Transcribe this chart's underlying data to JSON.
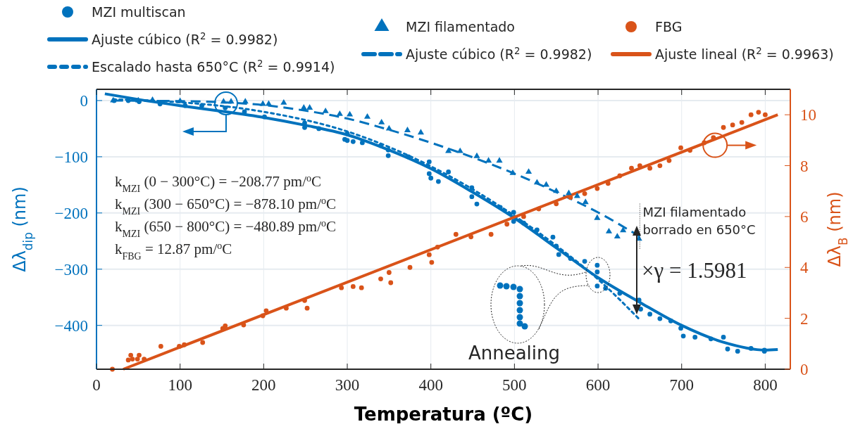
{
  "chart_data": {
    "type": "scatter",
    "xlabel": "Temperatura (ºC)",
    "ylabel": "Δλ$_{dip}$ (nm)",
    "y2label": "Δλ$_{B}$ (nm)",
    "xlim": [
      0,
      830
    ],
    "xticks": [
      0,
      100,
      200,
      300,
      400,
      500,
      600,
      700,
      800
    ],
    "ylim": [
      -478,
      20
    ],
    "yticks": [
      -400,
      -300,
      -200,
      -100,
      0
    ],
    "y2lim": [
      0,
      11
    ],
    "y2ticks": [
      0,
      2,
      4,
      6,
      8,
      10
    ],
    "grid": true,
    "legend": "top",
    "series": [
      {
        "name": "MZI multiscan",
        "marker": "circle",
        "color": "#0072bd",
        "x": [
          21,
          38,
          51,
          76,
          106,
          126,
          154,
          177,
          201,
          249,
          249,
          266,
          297,
          300,
          300,
          307,
          318,
          340,
          349,
          349,
          373,
          398,
          398,
          400,
          409,
          421,
          449,
          449,
          455,
          483,
          499,
          499,
          511,
          527,
          546,
          550,
          553,
          567,
          584,
          599,
          599,
          599,
          609,
          626,
          649,
          651,
          662,
          674,
          687,
          699,
          702,
          716,
          735,
          750,
          755,
          767,
          783,
          799,
          799
        ],
        "values": [
          0,
          0,
          -2,
          -6,
          -9,
          -9,
          -13,
          -20,
          -29,
          -40,
          -48,
          -50,
          -69,
          -59,
          -71,
          -73,
          -75,
          -80,
          -88,
          -98,
          -100,
          -109,
          -130,
          -138,
          -144,
          -127,
          -155,
          -171,
          -184,
          -190,
          -199,
          -215,
          -218,
          -230,
          -243,
          -259,
          -274,
          -281,
          -286,
          -293,
          -305,
          -330,
          -334,
          -343,
          -355,
          -371,
          -380,
          -388,
          -392,
          -405,
          -419,
          -421,
          -424,
          -421,
          -442,
          -446,
          -441,
          -444,
          -446
        ]
      },
      {
        "name": "Ajuste cúbico (R$^{2}$ = 0.9982)",
        "type": "line",
        "line_style": "solid",
        "color": "#0072bd",
        "x": [
          10,
          50,
          100,
          150,
          200,
          250,
          300,
          350,
          400,
          450,
          500,
          550,
          600,
          650,
          700,
          750,
          800,
          815
        ],
        "values": [
          12,
          2,
          -9,
          -19,
          -30,
          -44,
          -61,
          -88,
          -121,
          -163,
          -209,
          -262,
          -315,
          -359,
          -400,
          -430,
          -444,
          -443
        ]
      },
      {
        "name": "Escalado hasta 650°C (R$^{2}$ = 0.9914)",
        "type": "line",
        "line_style": "dotted",
        "color": "#0072bd",
        "x": [
          20,
          100,
          200,
          300,
          400,
          500,
          550,
          600,
          650
        ],
        "values": [
          2,
          -3,
          -20,
          -55,
          -117,
          -205,
          -258,
          -318,
          -390
        ]
      },
      {
        "name": "MZI filamentado",
        "marker": "triangle",
        "color": "#0072bd",
        "x": [
          20,
          50,
          67,
          100,
          152,
          161,
          178,
          199,
          206,
          224,
          248,
          255,
          274,
          291,
          303,
          324,
          341,
          350,
          372,
          388,
          421,
          435,
          455,
          469,
          482,
          498,
          517,
          527,
          538,
          550,
          565,
          575,
          585,
          599,
          613,
          623,
          630,
          649
        ],
        "values": [
          0,
          0,
          1,
          -1,
          -2,
          -2,
          -2,
          -6,
          -6,
          -4,
          -13,
          -13,
          -19,
          -24,
          -25,
          -29,
          -39,
          -50,
          -53,
          -57,
          -90,
          -90,
          -99,
          -107,
          -107,
          -129,
          -127,
          -146,
          -150,
          -161,
          -165,
          -170,
          -181,
          -209,
          -233,
          -242,
          -231,
          -246
        ]
      },
      {
        "name": "Ajuste cúbico (R$^{2}$ = 0.9982)",
        "type": "line",
        "line_style": "dashed",
        "color": "#0072bd",
        "x": [
          20,
          100,
          150,
          200,
          250,
          300,
          350,
          400,
          450,
          500,
          550,
          600,
          650
        ],
        "values": [
          0,
          -1,
          -3,
          -8,
          -18,
          -32,
          -52,
          -75,
          -101,
          -130,
          -163,
          -199,
          -242
        ]
      },
      {
        "name": "FBG",
        "marker": "circle",
        "axis": "y2",
        "color": "#d95319",
        "x": [
          19,
          38,
          41,
          43,
          49,
          51,
          57,
          77,
          99,
          105,
          127,
          151,
          154,
          176,
          199,
          203,
          227,
          249,
          252,
          293,
          307,
          317,
          340,
          350,
          352,
          375,
          398,
          401,
          408,
          430,
          448,
          472,
          491,
          511,
          529,
          550,
          567,
          584,
          599,
          612,
          626,
          640,
          650,
          662,
          674,
          685,
          699,
          710,
          727,
          738,
          750,
          761,
          772,
          783,
          792,
          800
        ],
        "values": [
          0,
          0.36,
          0.55,
          0.4,
          0.4,
          0.55,
          0.4,
          0.9,
          0.9,
          0.96,
          1.05,
          1.6,
          1.7,
          1.74,
          2.1,
          2.3,
          2.4,
          2.7,
          2.4,
          3.2,
          3.25,
          3.2,
          3.55,
          3.8,
          3.4,
          4.0,
          4.5,
          4.2,
          4.8,
          5.3,
          5.2,
          5.3,
          5.7,
          6.0,
          6.3,
          6.5,
          6.75,
          6.9,
          7.1,
          7.3,
          7.6,
          7.9,
          8.0,
          7.9,
          8.0,
          8.2,
          8.7,
          8.6,
          8.9,
          9.1,
          9.5,
          9.6,
          9.7,
          10.0,
          10.1,
          10.0
        ]
      },
      {
        "name": "Ajuste lineal (R$^{2}$ = 0.9963)",
        "type": "line",
        "line_style": "solid",
        "axis": "y2",
        "color": "#d95319",
        "x": [
          32,
          815
        ],
        "values": [
          0,
          10
        ]
      }
    ],
    "annotations": [
      "k$_{MZI}$ (0 − 300°C) = −208.77 pm/$^{o}$C",
      "k$_{MZI}$ (300 − 650°C) = −878.10 pm/$^{o}$C",
      "k$_{MZI}$ (650 − 800°C) = −480.89 pm/$^{o}$C",
      "k$_{FBG}$ = 12.87 pm/$^{o}$C",
      {
        "text": "MZI filamentado\nborrado en 650°C",
        "x": 650,
        "y": -246
      },
      "×γ = 1.5981",
      "Annealing"
    ]
  }
}
